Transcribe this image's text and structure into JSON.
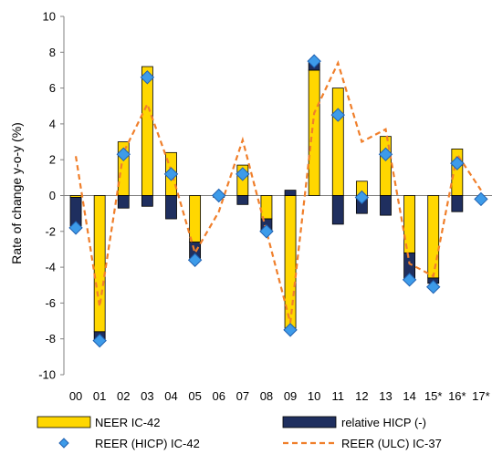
{
  "chart_data": {
    "type": "bar",
    "ylabel": "Rate of change y-o-y (%)",
    "ylim": [
      -10,
      10
    ],
    "ytick_step": 2,
    "grid": false,
    "legend_placement": "bottom",
    "categories": [
      "00",
      "01",
      "02",
      "03",
      "04",
      "05",
      "06",
      "07",
      "08",
      "09",
      "10",
      "11",
      "12",
      "13",
      "14",
      "15*",
      "16*",
      "17*"
    ],
    "series": [
      {
        "name": "NEER IC-42",
        "kind": "stacked-bar",
        "color": "#FFD700",
        "values": [
          -0.1,
          -7.6,
          3.0,
          7.2,
          2.4,
          -2.6,
          0.05,
          1.7,
          -1.3,
          -7.4,
          7.0,
          6.0,
          0.8,
          3.3,
          -3.2,
          -4.6,
          2.6,
          null
        ]
      },
      {
        "name": "relative HICP (-)",
        "kind": "stacked-bar",
        "color": "#1F2F5F",
        "values": [
          -1.6,
          -0.5,
          -0.7,
          -0.6,
          -1.3,
          -0.9,
          -0.1,
          -0.5,
          -0.7,
          0.3,
          0.5,
          -1.6,
          -1.0,
          -1.1,
          -1.5,
          -0.3,
          -0.9,
          null
        ]
      },
      {
        "name": "REER (HICP) IC-42",
        "kind": "marker",
        "color": "#3D9BE9",
        "values": [
          -1.8,
          -8.1,
          2.3,
          6.6,
          1.2,
          -3.6,
          0.0,
          1.2,
          -2.0,
          -7.5,
          7.5,
          4.5,
          -0.1,
          2.3,
          -4.7,
          -5.1,
          1.8,
          -0.2
        ]
      },
      {
        "name": "REER (ULC) IC-37",
        "kind": "line",
        "color": "#F07F2B",
        "values": [
          2.2,
          -6.2,
          2.4,
          5.1,
          1.4,
          -3.2,
          -0.9,
          3.1,
          -2.0,
          -7.1,
          4.6,
          7.4,
          3.0,
          3.7,
          -3.8,
          -4.5,
          2.3,
          0.3
        ]
      }
    ]
  },
  "colors": {
    "axis": "#808080",
    "bar_border": "#000000",
    "marker_border": "#2060B0"
  }
}
